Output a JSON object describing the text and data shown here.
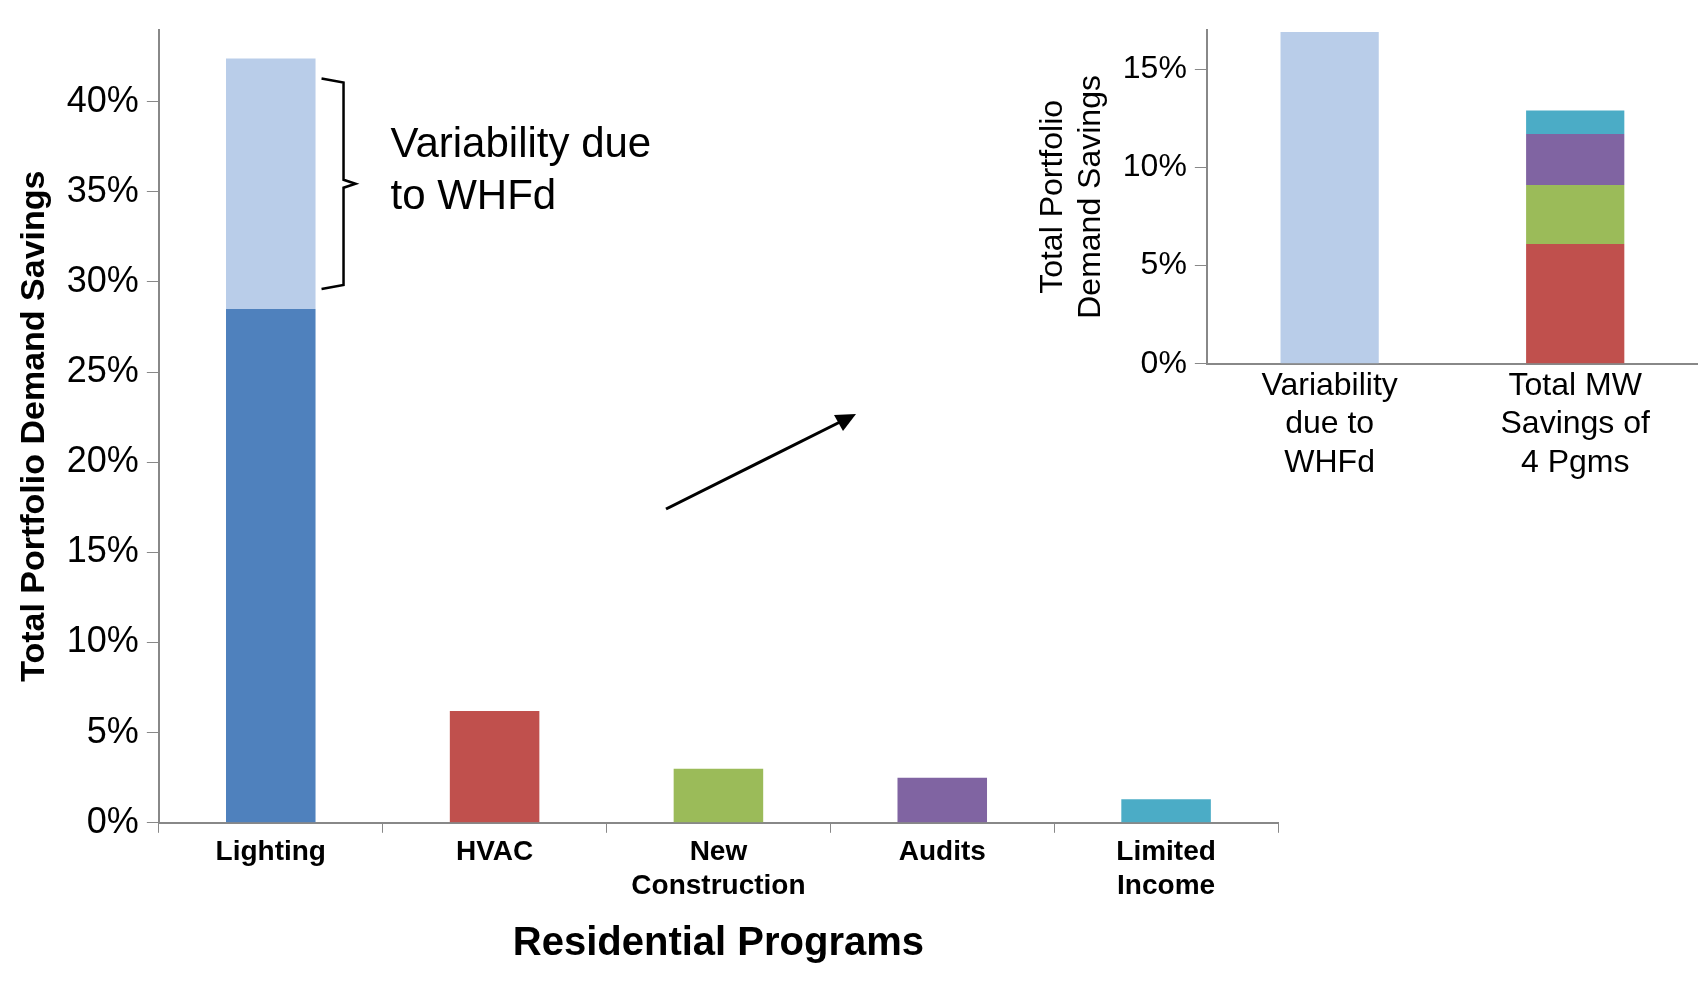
{
  "chart_data": [
    {
      "type": "bar",
      "xlabel": "Residential Programs",
      "ylabel": "Total Portfolio Demand Savings",
      "categories": [
        "Lighting",
        "HVAC",
        "New Construction",
        "Audits",
        "Limited Income"
      ],
      "stacked": true,
      "series": [
        {
          "colors": [
            "#4f81bd",
            "#c0504d",
            "#9bbb59",
            "#8064a2",
            "#4bacc6"
          ],
          "values": [
            28.5,
            6.2,
            3.0,
            2.5,
            1.3
          ]
        },
        {
          "color": "#b9cde9",
          "values": [
            13.9,
            null,
            null,
            null,
            null
          ]
        }
      ],
      "ylim": [
        0,
        44
      ],
      "yticks": [
        {
          "value": 0,
          "label": "0%"
        },
        {
          "value": 5,
          "label": "5%"
        },
        {
          "value": 10,
          "label": "10%"
        },
        {
          "value": 15,
          "label": "15%"
        },
        {
          "value": 20,
          "label": "20%"
        },
        {
          "value": 25,
          "label": "25%"
        },
        {
          "value": 30,
          "label": "30%"
        },
        {
          "value": 35,
          "label": "35%"
        },
        {
          "value": 40,
          "label": "40%"
        }
      ],
      "annotations": [
        "Variability due to WHFd"
      ]
    },
    {
      "type": "bar",
      "ylabel": "Total Portfolio Demand Savings",
      "categories": [
        "Variability due to WHFd",
        "Total MW Savings of 4 Pgms"
      ],
      "stacked": true,
      "series": [
        {
          "color": "#b9cde9",
          "values": [
            16.9,
            null
          ]
        },
        {
          "color": "#c0504d",
          "values": [
            null,
            6.1
          ]
        },
        {
          "color": "#9bbb59",
          "values": [
            null,
            3.0
          ]
        },
        {
          "color": "#8064a2",
          "values": [
            null,
            2.6
          ]
        },
        {
          "color": "#4bacc6",
          "values": [
            null,
            1.2
          ]
        }
      ],
      "ylim": [
        0,
        17
      ],
      "yticks": [
        {
          "value": 0,
          "label": "0%"
        },
        {
          "value": 5,
          "label": "5%"
        },
        {
          "value": 10,
          "label": "10%"
        },
        {
          "value": 15,
          "label": "15%"
        }
      ]
    }
  ]
}
